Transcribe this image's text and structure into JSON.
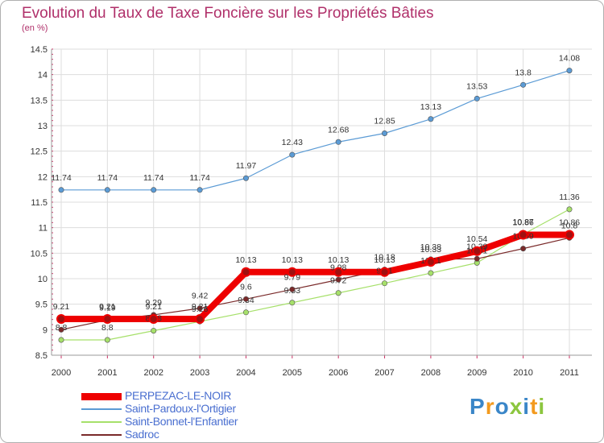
{
  "title": "Evolution du Taux de Taxe Foncière sur les Propriétés Bâties",
  "unit": "(en %)",
  "brand": {
    "name": "Proxiti",
    "letters": [
      {
        "ch": "P",
        "color": "#3a86c8"
      },
      {
        "ch": "r",
        "color": "#f39a1e"
      },
      {
        "ch": "o",
        "color": "#3a86c8"
      },
      {
        "ch": "x",
        "color": "#8cc63f"
      },
      {
        "ch": "i",
        "color": "#3a86c8"
      },
      {
        "ch": "t",
        "color": "#f39a1e"
      },
      {
        "ch": "i",
        "color": "#8cc63f"
      }
    ]
  },
  "chart_data": {
    "type": "line",
    "title": "Evolution du Taux de Taxe Foncière sur les Propriétés Bâties",
    "ylabel": "(en %)",
    "xlabel": "",
    "x": [
      "2000",
      "2001",
      "2002",
      "2003",
      "2004",
      "2005",
      "2006",
      "2007",
      "2008",
      "2009",
      "2010",
      "2011"
    ],
    "ylim": [
      8.5,
      14.5
    ],
    "yticks": [
      "8.5",
      "9",
      "9.5",
      "10",
      "10.5",
      "11",
      "11.5",
      "12",
      "12.5",
      "13",
      "13.5",
      "14",
      "14.5"
    ],
    "grid": true,
    "legend_position": "bottom-left",
    "series": [
      {
        "name": "Saint-Pardoux-l'Ortigier",
        "color": "#5b9bd5",
        "width": 1.2,
        "values": [
          11.74,
          11.74,
          11.74,
          11.74,
          11.97,
          12.43,
          12.68,
          12.85,
          13.13,
          13.53,
          13.8,
          14.08
        ],
        "labels": [
          "11.74",
          "11.74",
          "11.74",
          "11.74",
          "11.97",
          "12.43",
          "12.68",
          "12.85",
          "13.13",
          "13.53",
          "13.8",
          "14.08"
        ]
      },
      {
        "name": "Saint-Bonnet-l'Enfantier",
        "color": "#a6e06a",
        "width": 1.2,
        "values": [
          8.8,
          8.8,
          8.98,
          9.16,
          9.34,
          9.53,
          9.72,
          9.91,
          10.11,
          10.31,
          10.87,
          11.36
        ],
        "labels": [
          "8.8",
          "8.8",
          "8.98",
          "9.16",
          "9.34",
          "9.53",
          "9.72",
          "9.91",
          "10.11",
          "10.31",
          "10.87",
          "11.36"
        ]
      },
      {
        "name": "Sadroc",
        "color": "#7a2a2a",
        "width": 1.2,
        "values": [
          9.0,
          9.19,
          9.29,
          9.42,
          9.6,
          9.79,
          9.98,
          10.18,
          10.38,
          10.39,
          10.59,
          10.8
        ],
        "labels": [
          "9",
          "9.19",
          "9.29",
          "9.42",
          "9.6",
          "9.79",
          "9.98",
          "10.18",
          "10.38",
          "10.39",
          "10.59",
          "10.8"
        ]
      },
      {
        "name": "PERPEZAC-LE-NOIR",
        "color": "#ee0000",
        "width": 8,
        "values": [
          9.21,
          9.21,
          9.21,
          9.21,
          10.13,
          10.13,
          10.13,
          10.13,
          10.33,
          10.54,
          10.86,
          10.86
        ],
        "labels": [
          "9.21",
          "9.21",
          "9.21",
          "9.21",
          "10.13",
          "10.13",
          "10.13",
          "10.13",
          "10.33",
          "10.54",
          "10.86",
          "10.86"
        ]
      }
    ],
    "legend_order": [
      "PERPEZAC-LE-NOIR",
      "Saint-Pardoux-l'Ortigier",
      "Saint-Bonnet-l'Enfantier",
      "Sadroc"
    ]
  }
}
